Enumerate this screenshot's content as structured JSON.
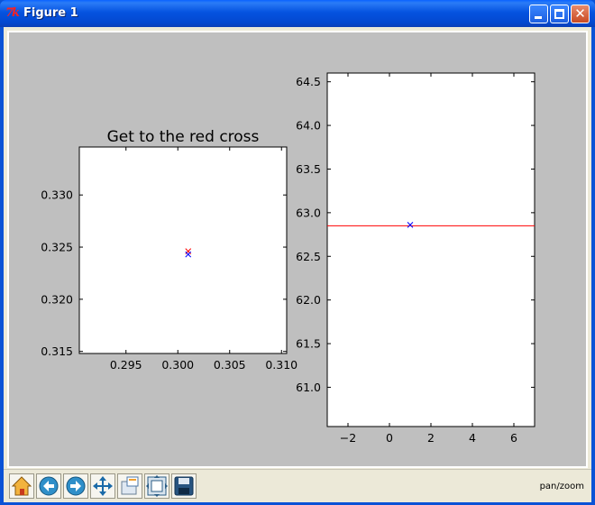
{
  "window": {
    "title": "Figure 1",
    "status": "pan/zoom"
  },
  "toolbar": {
    "tools": [
      "home-icon",
      "back-arrow-icon",
      "forward-arrow-icon",
      "pan-icon",
      "zoom-rect-icon",
      "subplots-icon",
      "save-icon"
    ]
  },
  "colors": {
    "red": "#ff0000",
    "blue": "#0000ff",
    "figure_bg": "#bfbfbf"
  },
  "chart_data": [
    {
      "type": "scatter",
      "title": "Get to the red cross",
      "xlim": [
        0.2905,
        0.3105
      ],
      "ylim": [
        0.3148,
        0.3346
      ],
      "xticks": [
        0.295,
        0.3,
        0.305,
        0.31
      ],
      "xticklabels": [
        "0.295",
        "0.300",
        "0.305",
        "0.310"
      ],
      "yticks": [
        0.315,
        0.32,
        0.325,
        0.33
      ],
      "yticklabels": [
        "0.315",
        "0.320",
        "0.325",
        "0.330"
      ],
      "grid": false,
      "series": [
        {
          "marker": "x",
          "color": "#ff0000",
          "points": [
            [
              0.301,
              0.3246
            ]
          ]
        },
        {
          "marker": "x",
          "color": "#0000ff",
          "points": [
            [
              0.301,
              0.3243
            ]
          ]
        }
      ]
    },
    {
      "type": "line",
      "xlim": [
        -3,
        7
      ],
      "ylim": [
        60.55,
        64.6
      ],
      "xticks": [
        -2,
        0,
        2,
        4,
        6
      ],
      "xticklabels": [
        "−2",
        "0",
        "2",
        "4",
        "6"
      ],
      "yticks": [
        61.0,
        61.5,
        62.0,
        62.5,
        63.0,
        63.5,
        64.0,
        64.5
      ],
      "yticklabels": [
        "61.0",
        "61.5",
        "62.0",
        "62.5",
        "63.0",
        "63.5",
        "64.0",
        "64.5"
      ],
      "grid": false,
      "series": [
        {
          "marker": "line",
          "color": "#ff0000",
          "x": [
            -3,
            7
          ],
          "y": [
            62.85,
            62.85
          ]
        },
        {
          "marker": "x",
          "color": "#0000ff",
          "points": [
            [
              1.0,
              62.86
            ]
          ]
        }
      ]
    }
  ]
}
